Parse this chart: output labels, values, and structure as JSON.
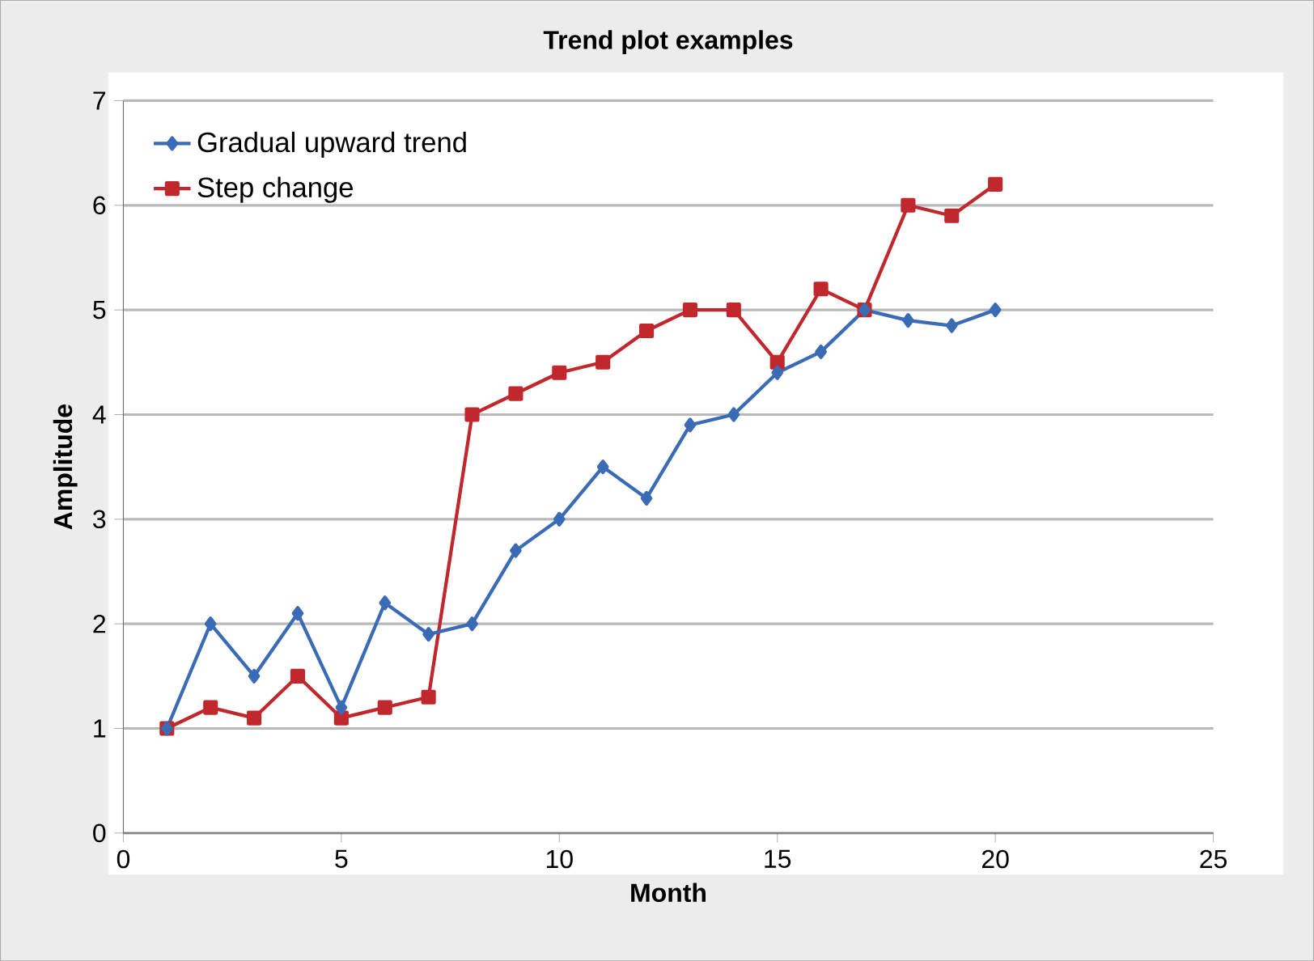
{
  "chart_data": {
    "type": "line",
    "title": "Trend plot examples",
    "xlabel": "Month",
    "ylabel": "Amplitude",
    "x": [
      1,
      2,
      3,
      4,
      5,
      6,
      7,
      8,
      9,
      10,
      11,
      12,
      13,
      14,
      15,
      16,
      17,
      18,
      19,
      20
    ],
    "series": [
      {
        "name": "Gradual upward trend",
        "color": "#3a6bb5",
        "marker": "diamond",
        "values": [
          1.0,
          2.0,
          1.5,
          2.1,
          1.2,
          2.2,
          1.9,
          2.0,
          2.7,
          3.0,
          3.5,
          3.2,
          3.9,
          4.0,
          4.4,
          4.6,
          5.0,
          4.9,
          4.85,
          5.0
        ]
      },
      {
        "name": "Step change",
        "color": "#c0282d",
        "marker": "square",
        "values": [
          1.0,
          1.2,
          1.1,
          1.5,
          1.1,
          1.2,
          1.3,
          4.0,
          4.2,
          4.4,
          4.5,
          4.8,
          5.0,
          5.0,
          4.5,
          5.2,
          5.0,
          6.0,
          5.9,
          6.2
        ]
      }
    ],
    "xlim": [
      0,
      25
    ],
    "ylim": [
      0,
      7
    ],
    "xticks": [
      0,
      5,
      10,
      15,
      20,
      25
    ],
    "yticks": [
      0,
      1,
      2,
      3,
      4,
      5,
      6,
      7
    ],
    "grid": "y",
    "legend": "top left",
    "line_style": "solid"
  }
}
